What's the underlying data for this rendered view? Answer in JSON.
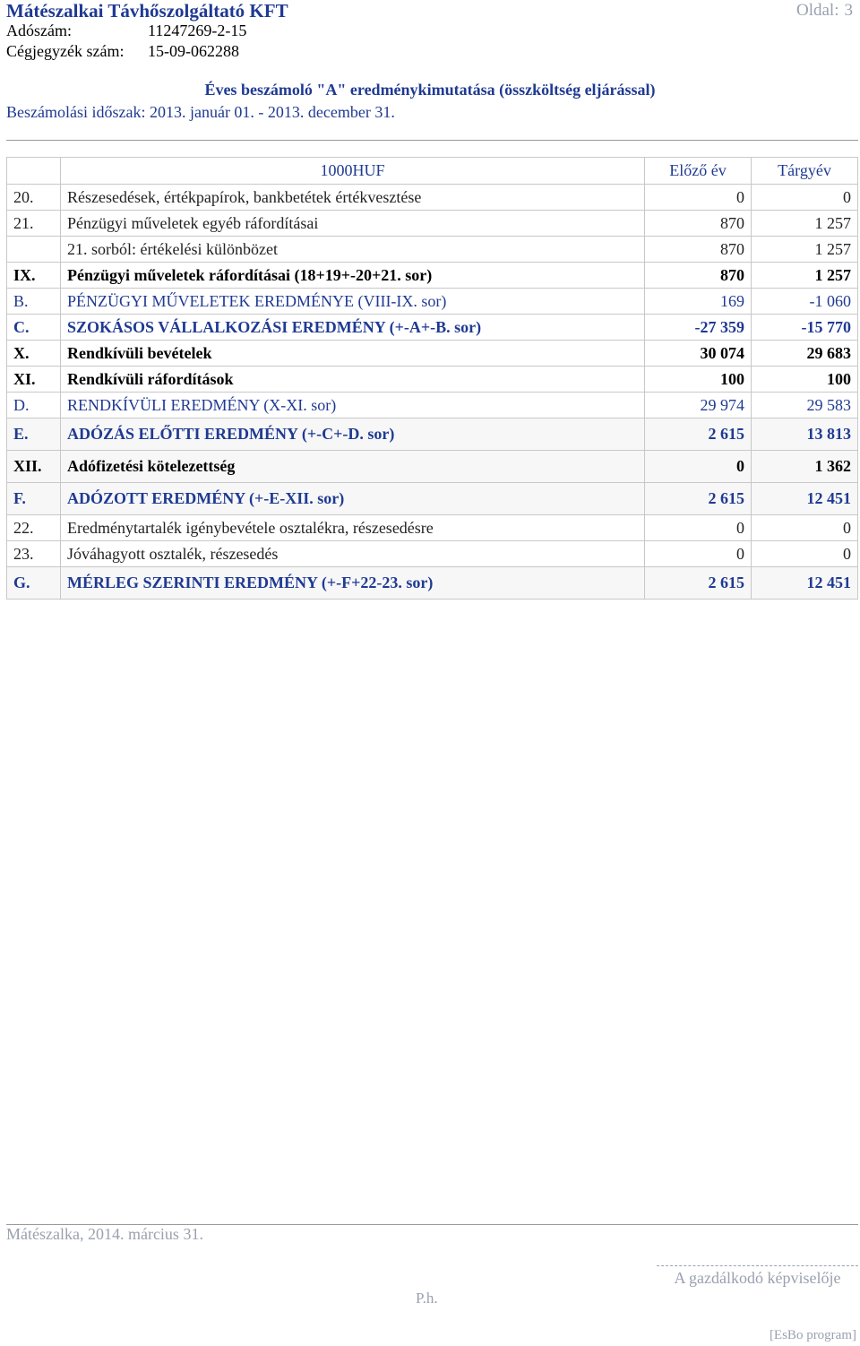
{
  "header": {
    "company": "Mátészalkai Távhőszolgáltató KFT",
    "page_label": "Oldal:",
    "page_number": "3",
    "tax_label": "Adószám:",
    "tax_value": "11247269-2-15",
    "reg_label": "Cégjegyzék szám:",
    "reg_value": "15-09-062288",
    "title": "Éves beszámoló \"A\" eredménykimutatása (összköltség eljárással)",
    "period": "Beszámolási időszak: 2013. január 01. - 2013. december 31."
  },
  "table": {
    "unit": "1000HUF",
    "col_prev": "Előző év",
    "col_curr": "Tárgyév",
    "rows": [
      {
        "code": "20.",
        "label": "Részesedések, értékpapírok, bankbetétek értékvesztése",
        "prev": "0",
        "curr": "0"
      },
      {
        "code": "21.",
        "label": "Pénzügyi műveletek egyéb ráfordításai",
        "prev": "870",
        "curr": "1 257"
      },
      {
        "code": "",
        "label": "21. sorból: értékelési különbözet",
        "prev": "870",
        "curr": "1 257"
      },
      {
        "code": "IX.",
        "label": "Pénzügyi műveletek ráfordításai (18+19+-20+21. sor)",
        "prev": "870",
        "curr": "1 257"
      },
      {
        "code": "B.",
        "label": "PÉNZÜGYI MŰVELETEK EREDMÉNYE (VIII-IX. sor)",
        "prev": "169",
        "curr": "-1 060"
      },
      {
        "code": "C.",
        "label": "SZOKÁSOS VÁLLALKOZÁSI EREDMÉNY (+-A+-B. sor)",
        "prev": "-27 359",
        "curr": "-15 770"
      },
      {
        "code": "X.",
        "label": "Rendkívüli bevételek",
        "prev": "30 074",
        "curr": "29 683"
      },
      {
        "code": "XI.",
        "label": "Rendkívüli ráfordítások",
        "prev": "100",
        "curr": "100"
      },
      {
        "code": "D.",
        "label": "RENDKÍVÜLI EREDMÉNY (X-XI. sor)",
        "prev": "29 974",
        "curr": "29 583"
      },
      {
        "code": "E.",
        "label": "ADÓZÁS ELŐTTI EREDMÉNY (+-C+-D. sor)",
        "prev": "2 615",
        "curr": "13 813"
      },
      {
        "code": "XII.",
        "label": "Adófizetési kötelezettség",
        "prev": "0",
        "curr": "1 362"
      },
      {
        "code": "F.",
        "label": "ADÓZOTT EREDMÉNY (+-E-XII. sor)",
        "prev": "2 615",
        "curr": "12 451"
      },
      {
        "code": "22.",
        "label": "Eredménytartalék igénybevétele osztalékra, részesedésre",
        "prev": "0",
        "curr": "0"
      },
      {
        "code": "23.",
        "label": "Jóváhagyott osztalék, részesedés",
        "prev": "0",
        "curr": "0"
      },
      {
        "code": "G.",
        "label": "MÉRLEG SZERINTI EREDMÉNY (+-F+22-23. sor)",
        "prev": "2 615",
        "curr": "12 451"
      }
    ]
  },
  "footer": {
    "place_date": "Mátészalka, 2014. március 31.",
    "signature": "A gazdálkodó képviselője",
    "ph": "P.h.",
    "program": "[EsBo program]"
  }
}
